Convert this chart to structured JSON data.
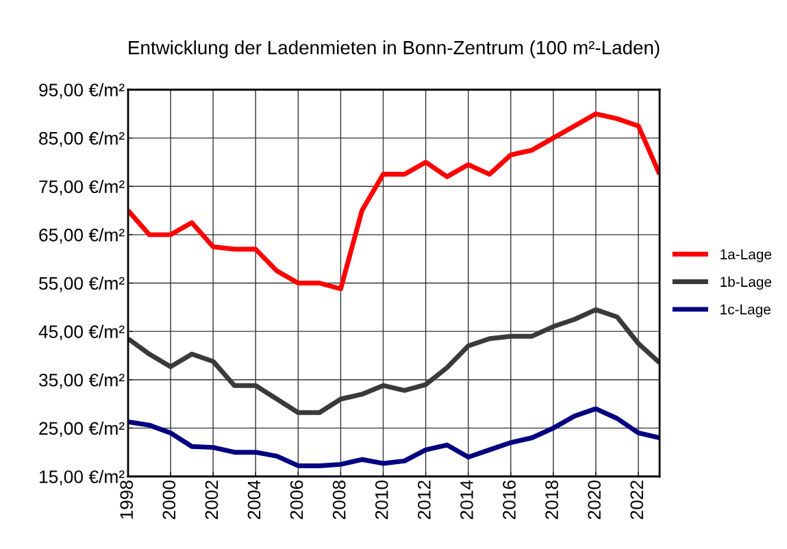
{
  "chart_data": {
    "type": "line",
    "title": "Entwicklung der Ladenmieten in Bonn-Zentrum (100 m²-Laden)",
    "x": [
      1998,
      1999,
      2000,
      2001,
      2002,
      2003,
      2004,
      2005,
      2006,
      2007,
      2008,
      2009,
      2010,
      2011,
      2012,
      2013,
      2014,
      2015,
      2016,
      2017,
      2018,
      2019,
      2020,
      2021,
      2022,
      2023
    ],
    "series": [
      {
        "name": "1a-Lage",
        "color": "#ff0000",
        "values": [
          70,
          65,
          65,
          67.5,
          62.5,
          62,
          62,
          57.5,
          55,
          55,
          53.8,
          70,
          77.5,
          77.5,
          80,
          77,
          79.5,
          77.5,
          81.5,
          82.5,
          85,
          87.5,
          90,
          89,
          87.5,
          77.5
        ]
      },
      {
        "name": "1b-Lage",
        "color": "#3a3a3a",
        "values": [
          43.5,
          40.3,
          37.7,
          40.3,
          38.8,
          33.8,
          33.8,
          31,
          28.2,
          28.2,
          31,
          32,
          33.8,
          32.8,
          34,
          37.5,
          42,
          43.5,
          44,
          44,
          46,
          47.5,
          49.5,
          48,
          42.5,
          38.5
        ]
      },
      {
        "name": "1c-Lage",
        "color": "#000080",
        "values": [
          26.3,
          25.6,
          24,
          21.2,
          21,
          20,
          20,
          19.2,
          17.2,
          17.2,
          17.5,
          18.5,
          17.7,
          18.2,
          20.5,
          21.5,
          19,
          20.5,
          22,
          23,
          25,
          27.5,
          29,
          27,
          24,
          23
        ]
      }
    ],
    "xlim": [
      1998,
      2023
    ],
    "xticks": [
      1998,
      2000,
      2002,
      2004,
      2006,
      2008,
      2010,
      2012,
      2014,
      2016,
      2018,
      2020,
      2022
    ],
    "ylim": [
      15,
      95
    ],
    "yticks": [
      {
        "value": 15,
        "label": "15,00 €/m²"
      },
      {
        "value": 25,
        "label": "25,00 €/m²"
      },
      {
        "value": 35,
        "label": "35,00 €/m²"
      },
      {
        "value": 45,
        "label": "45,00 €/m²"
      },
      {
        "value": 55,
        "label": "55,00 €/m²"
      },
      {
        "value": 65,
        "label": "65,00 €/m²"
      },
      {
        "value": 75,
        "label": "75,00 €/m²"
      },
      {
        "value": 85,
        "label": "85,00 €/m²"
      },
      {
        "value": 95,
        "label": "95,00 €/m²"
      }
    ],
    "grid": true,
    "legend": "right",
    "line_style": "solid",
    "marker": "none"
  }
}
